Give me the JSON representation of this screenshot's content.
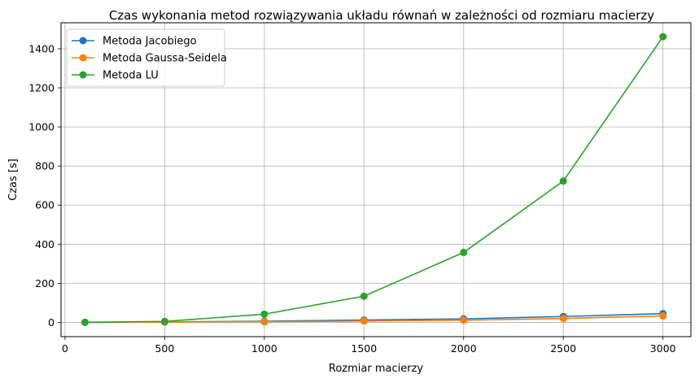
{
  "chart_data": {
    "type": "line",
    "title": "Czas wykonania metod rozwiązywania układu równań w zależności od rozmiaru macierzy",
    "xlabel": "Rozmiar macierzy",
    "ylabel": "Czas [s]",
    "x": [
      100,
      500,
      1000,
      1500,
      2000,
      2500,
      3000
    ],
    "xlim": [
      -20,
      3140
    ],
    "ylim": [
      -73,
      1533
    ],
    "xticks": [
      0,
      500,
      1000,
      1500,
      2000,
      2500,
      3000
    ],
    "yticks": [
      0,
      200,
      400,
      600,
      800,
      1000,
      1200,
      1400
    ],
    "grid": true,
    "legend_position": "top-left",
    "series": [
      {
        "name": "Metoda Jacobiego",
        "color": "#1f77b4",
        "values": [
          0.1,
          2,
          6,
          12,
          18,
          30,
          45
        ]
      },
      {
        "name": "Metoda Gaussa-Seidela",
        "color": "#ff7f0e",
        "values": [
          0.05,
          1,
          3,
          7,
          11,
          20,
          33
        ]
      },
      {
        "name": "Metoda LU",
        "color": "#2ca02c",
        "values": [
          0.5,
          5,
          42,
          134,
          358,
          723,
          1462
        ]
      }
    ]
  }
}
